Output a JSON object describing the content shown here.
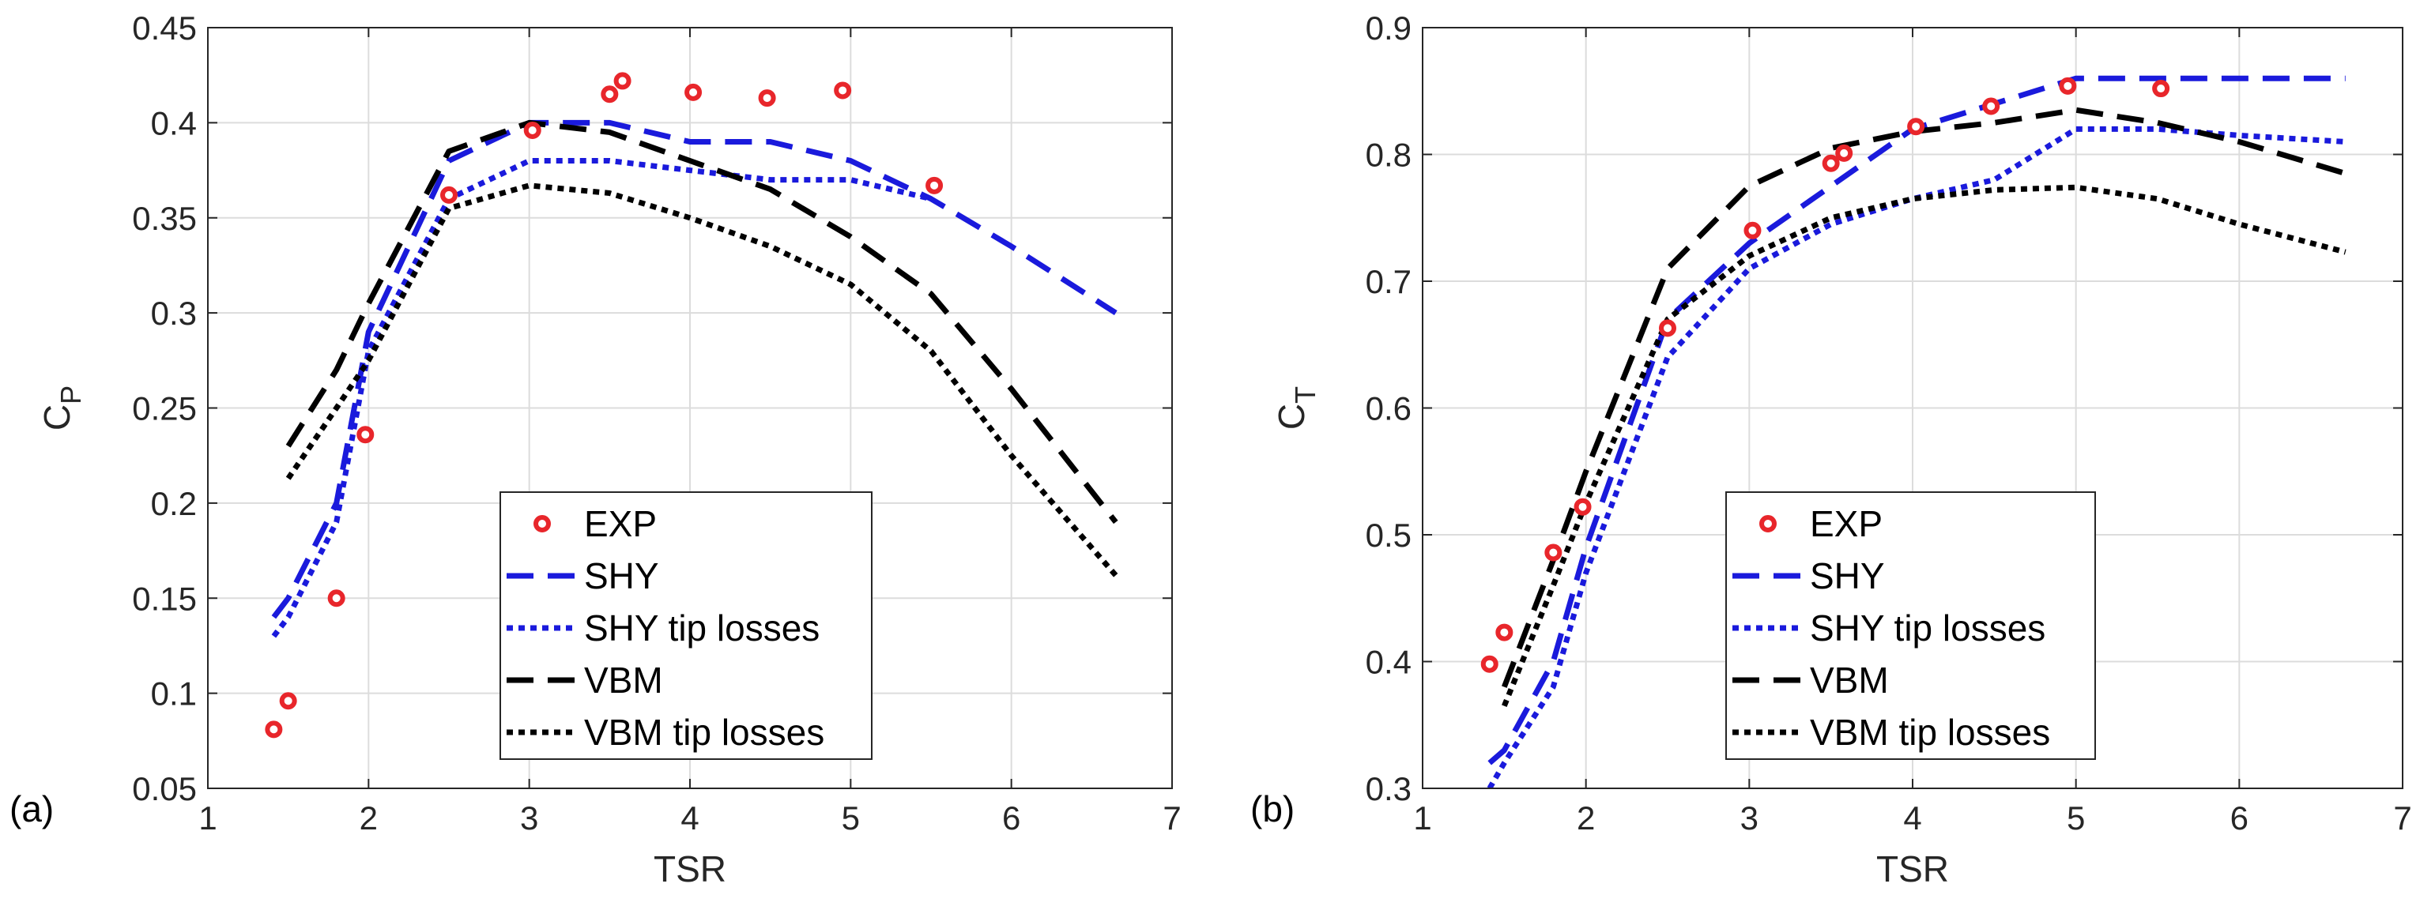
{
  "chart_data": [
    {
      "type": "line",
      "panel_label": "(a)",
      "xlabel": "TSR",
      "ylabel": "C",
      "ylabel_sub": "P",
      "xlim": [
        1,
        7
      ],
      "ylim": [
        0.05,
        0.45
      ],
      "xticks": [
        1,
        2,
        3,
        4,
        5,
        6,
        7
      ],
      "yticks": [
        0.05,
        0.1,
        0.15,
        0.2,
        0.25,
        0.3,
        0.35,
        0.4,
        0.45
      ],
      "ytick_labels": [
        "0.05",
        "0.1",
        "0.15",
        "0.2",
        "0.25",
        "0.3",
        "0.35",
        "0.4",
        "0.45"
      ],
      "grid": true,
      "legend_position": "lower-center",
      "series": [
        {
          "name": "EXP",
          "style": "markers",
          "color": "#e8262b",
          "x": [
            1.41,
            1.5,
            1.8,
            1.98,
            2.5,
            3.02,
            3.5,
            3.58,
            4.02,
            4.48,
            4.95,
            5.52
          ],
          "y": [
            0.081,
            0.096,
            0.15,
            0.236,
            0.362,
            0.396,
            0.415,
            0.422,
            0.416,
            0.413,
            0.417,
            0.367
          ]
        },
        {
          "name": "SHY",
          "style": "dash",
          "color": "#1a1adc",
          "x": [
            1.41,
            1.5,
            1.8,
            2.0,
            2.5,
            3.0,
            3.5,
            4.0,
            4.5,
            5.0,
            5.5,
            6.0,
            6.65
          ],
          "y": [
            0.14,
            0.15,
            0.2,
            0.29,
            0.38,
            0.4,
            0.4,
            0.39,
            0.39,
            0.38,
            0.36,
            0.335,
            0.3
          ]
        },
        {
          "name": "SHY tip losses",
          "style": "dot",
          "color": "#1a1adc",
          "x": [
            1.41,
            1.5,
            1.8,
            2.0,
            2.5,
            3.0,
            3.5,
            4.0,
            4.5,
            5.0,
            5.5
          ],
          "y": [
            0.13,
            0.14,
            0.19,
            0.28,
            0.36,
            0.38,
            0.38,
            0.375,
            0.37,
            0.37,
            0.36
          ]
        },
        {
          "name": "VBM",
          "style": "dash",
          "color": "#000000",
          "x": [
            1.5,
            1.8,
            2.0,
            2.5,
            3.0,
            3.5,
            4.0,
            4.5,
            5.0,
            5.5,
            6.0,
            6.65
          ],
          "y": [
            0.23,
            0.27,
            0.305,
            0.385,
            0.4,
            0.395,
            0.38,
            0.365,
            0.34,
            0.31,
            0.26,
            0.19
          ]
        },
        {
          "name": "VBM tip losses",
          "style": "dot",
          "color": "#000000",
          "x": [
            1.5,
            1.8,
            2.0,
            2.5,
            3.0,
            3.5,
            4.0,
            4.5,
            5.0,
            5.5,
            6.0,
            6.65
          ],
          "y": [
            0.213,
            0.25,
            0.275,
            0.355,
            0.367,
            0.363,
            0.35,
            0.335,
            0.315,
            0.28,
            0.225,
            0.162
          ]
        }
      ]
    },
    {
      "type": "line",
      "panel_label": "(b)",
      "xlabel": "TSR",
      "ylabel": "C",
      "ylabel_sub": "T",
      "xlim": [
        1,
        7
      ],
      "ylim": [
        0.3,
        0.9
      ],
      "xticks": [
        1,
        2,
        3,
        4,
        5,
        6,
        7
      ],
      "yticks": [
        0.3,
        0.4,
        0.5,
        0.6,
        0.7,
        0.8,
        0.9
      ],
      "ytick_labels": [
        "0.3",
        "0.4",
        "0.5",
        "0.6",
        "0.7",
        "0.8",
        "0.9"
      ],
      "grid": true,
      "legend_position": "lower-center",
      "series": [
        {
          "name": "EXP",
          "style": "markers",
          "color": "#e8262b",
          "x": [
            1.41,
            1.5,
            1.8,
            1.98,
            2.5,
            3.02,
            3.5,
            3.58,
            4.02,
            4.48,
            4.95,
            5.52
          ],
          "y": [
            0.398,
            0.423,
            0.486,
            0.522,
            0.663,
            0.74,
            0.793,
            0.801,
            0.822,
            0.838,
            0.854,
            0.852
          ]
        },
        {
          "name": "SHY",
          "style": "dash",
          "color": "#1a1adc",
          "x": [
            1.41,
            1.5,
            1.8,
            2.0,
            2.5,
            3.0,
            3.5,
            4.0,
            4.5,
            5.0,
            5.5,
            6.0,
            6.65
          ],
          "y": [
            0.32,
            0.33,
            0.4,
            0.49,
            0.67,
            0.73,
            0.775,
            0.82,
            0.84,
            0.86,
            0.86,
            0.86,
            0.86
          ]
        },
        {
          "name": "SHY tip losses",
          "style": "dot",
          "color": "#1a1adc",
          "x": [
            1.41,
            1.5,
            1.8,
            2.0,
            2.5,
            3.0,
            3.5,
            4.0,
            4.5,
            5.0,
            5.5,
            6.0,
            6.65
          ],
          "y": [
            0.3,
            0.32,
            0.38,
            0.47,
            0.64,
            0.71,
            0.745,
            0.765,
            0.78,
            0.82,
            0.82,
            0.815,
            0.81
          ]
        },
        {
          "name": "VBM",
          "style": "dash",
          "color": "#000000",
          "x": [
            1.5,
            1.8,
            2.0,
            2.5,
            3.0,
            3.5,
            4.0,
            4.5,
            5.0,
            5.5,
            6.0,
            6.65
          ],
          "y": [
            0.38,
            0.48,
            0.55,
            0.71,
            0.775,
            0.805,
            0.818,
            0.825,
            0.835,
            0.825,
            0.81,
            0.785
          ]
        },
        {
          "name": "VBM tip losses",
          "style": "dot",
          "color": "#000000",
          "x": [
            1.5,
            1.8,
            2.0,
            2.5,
            3.0,
            3.5,
            4.0,
            4.5,
            5.0,
            5.5,
            6.0,
            6.65
          ],
          "y": [
            0.365,
            0.46,
            0.525,
            0.67,
            0.72,
            0.75,
            0.765,
            0.772,
            0.774,
            0.765,
            0.745,
            0.723
          ]
        }
      ]
    }
  ]
}
